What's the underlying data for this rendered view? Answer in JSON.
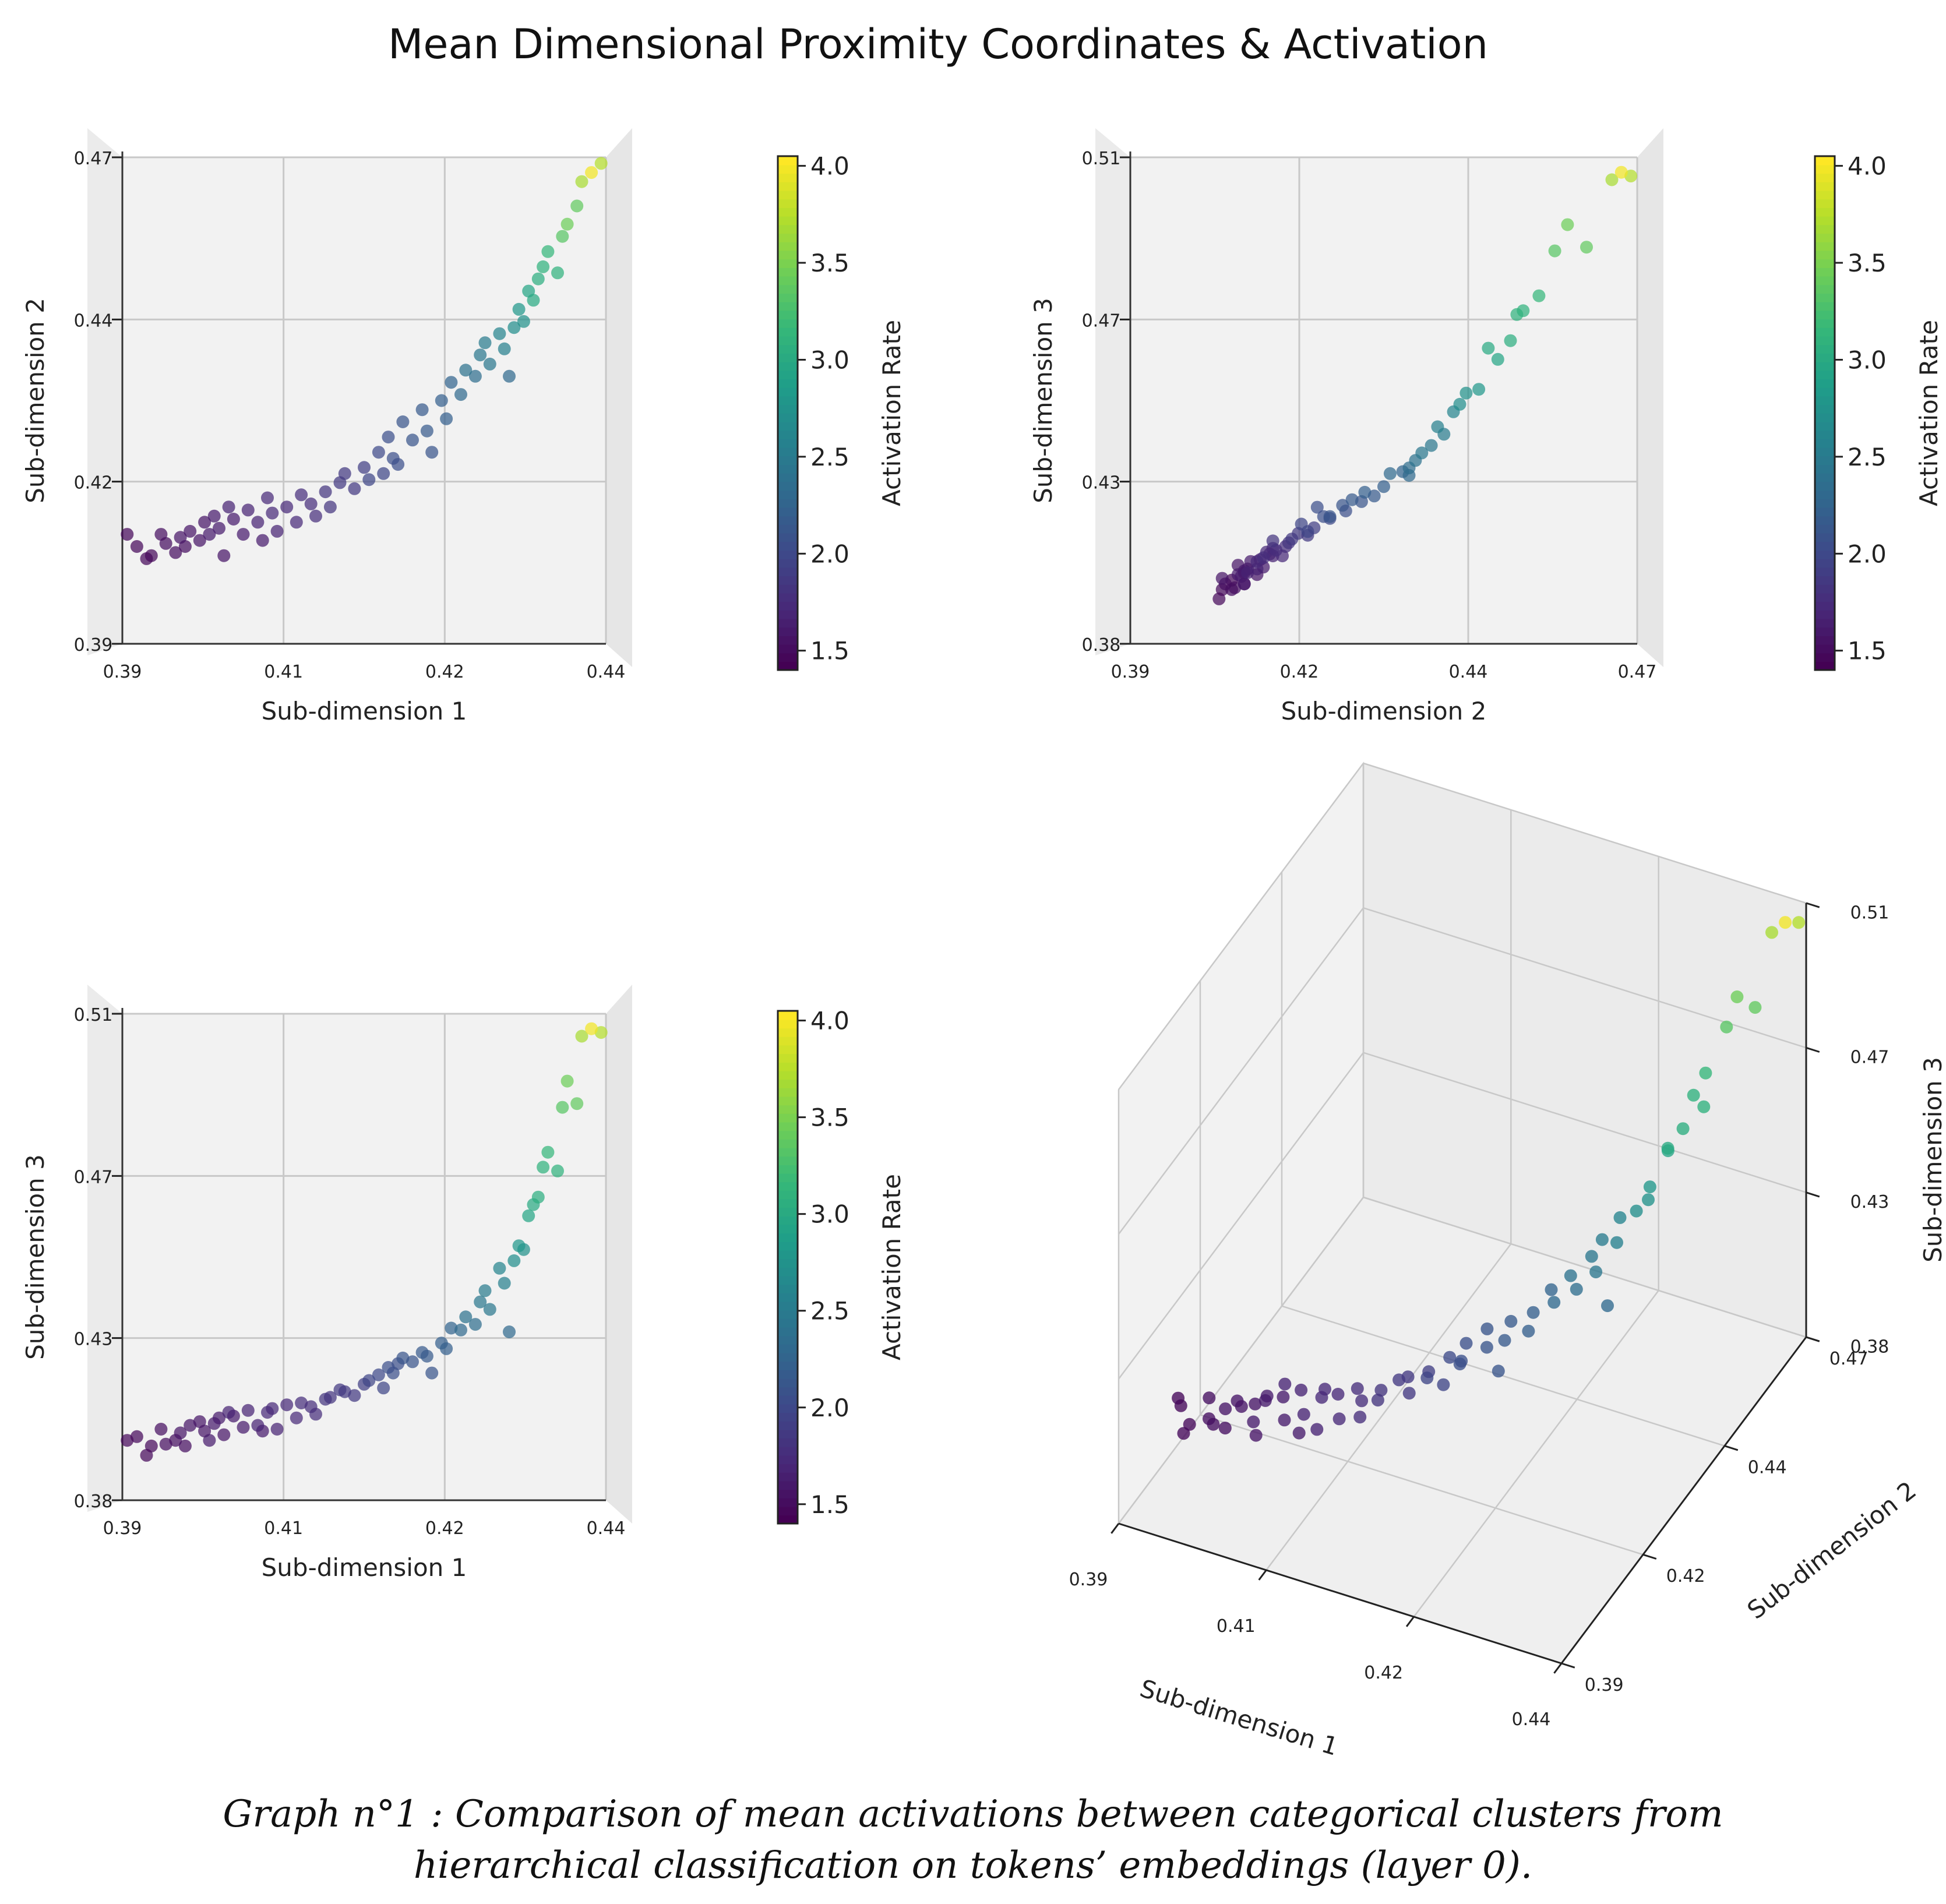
{
  "figure": {
    "title": "Mean Dimensional Proximity Coordinates & Activation",
    "caption_line1": "Graph n°1 : Comparison of mean activations between categorical clusters from",
    "caption_line2": "hierarchical classification on tokens’ embeddings (layer 0).",
    "colormap": "viridis",
    "colors": {
      "low": "#440154",
      "mid": "#21918c",
      "high": "#fde725",
      "pane": "#f2f2f2",
      "grid": "#c8c8c8"
    }
  },
  "chart_data": [
    {
      "type": "scatter",
      "panel": "top-left",
      "view": "3d projected: Sub-dimension 1 vs Sub-dimension 2",
      "xlabel": "Sub-dimension 1",
      "ylabel": "Sub-dimension 2",
      "xticks": [
        "0.39",
        "0.41",
        "0.42",
        "0.44"
      ],
      "yticks": [
        "0.39",
        "0.42",
        "0.44",
        "0.47"
      ],
      "xlim": [
        0.39,
        0.44
      ],
      "ylim": [
        0.39,
        0.47
      ],
      "grid": true,
      "colorbar": {
        "label": "Activation Rate",
        "ticks": [
          "1.5",
          "2.0",
          "2.5",
          "3.0",
          "3.5",
          "4.0"
        ],
        "range": [
          1.4,
          4.05
        ]
      }
    },
    {
      "type": "scatter",
      "panel": "top-right",
      "view": "3d projected: Sub-dimension 2 vs Sub-dimension 3",
      "xlabel": "Sub-dimension 2",
      "ylabel": "Sub-dimension 3",
      "xticks": [
        "0.39",
        "0.42",
        "0.44",
        "0.47"
      ],
      "yticks": [
        "0.38",
        "0.43",
        "0.47",
        "0.51"
      ],
      "xlim": [
        0.39,
        0.47
      ],
      "ylim": [
        0.38,
        0.51
      ],
      "grid": true,
      "colorbar": {
        "label": "Activation Rate",
        "ticks": [
          "1.5",
          "2.0",
          "2.5",
          "3.0",
          "3.5",
          "4.0"
        ],
        "range": [
          1.4,
          4.05
        ]
      }
    },
    {
      "type": "scatter",
      "panel": "bottom-left",
      "view": "3d projected: Sub-dimension 1 vs Sub-dimension 3",
      "xlabel": "Sub-dimension 1",
      "ylabel": "Sub-dimension 3",
      "xticks": [
        "0.39",
        "0.41",
        "0.42",
        "0.44"
      ],
      "yticks": [
        "0.38",
        "0.43",
        "0.47",
        "0.51"
      ],
      "xlim": [
        0.39,
        0.44
      ],
      "ylim": [
        0.38,
        0.51
      ],
      "grid": true,
      "colorbar": {
        "label": "Activation Rate",
        "ticks": [
          "1.5",
          "2.0",
          "2.5",
          "3.0",
          "3.5",
          "4.0"
        ],
        "range": [
          1.4,
          4.05
        ]
      }
    },
    {
      "type": "scatter",
      "panel": "bottom-right",
      "view": "3d perspective",
      "xlabel": "Sub-dimension 1",
      "ylabel": "Sub-dimension 2",
      "zlabel": "Sub-dimension 3",
      "xticks": [
        "0.39",
        "0.41",
        "0.42",
        "0.44"
      ],
      "yticks": [
        "0.39",
        "0.42",
        "0.44",
        "0.47"
      ],
      "zticks": [
        "0.38",
        "0.43",
        "0.47",
        "0.51"
      ],
      "xlim": [
        0.39,
        0.44
      ],
      "ylim": [
        0.39,
        0.47
      ],
      "zlim": [
        0.38,
        0.51
      ],
      "grid": true
    }
  ],
  "points": [
    {
      "x": 0.3905,
      "y": 0.408,
      "z": 0.396,
      "c": 1.45
    },
    {
      "x": 0.3915,
      "y": 0.406,
      "z": 0.397,
      "c": 1.45
    },
    {
      "x": 0.3925,
      "y": 0.404,
      "z": 0.392,
      "c": 1.45
    },
    {
      "x": 0.393,
      "y": 0.4045,
      "z": 0.3945,
      "c": 1.45
    },
    {
      "x": 0.394,
      "y": 0.408,
      "z": 0.399,
      "c": 1.5
    },
    {
      "x": 0.3945,
      "y": 0.4065,
      "z": 0.395,
      "c": 1.5
    },
    {
      "x": 0.3955,
      "y": 0.405,
      "z": 0.396,
      "c": 1.5
    },
    {
      "x": 0.396,
      "y": 0.4075,
      "z": 0.398,
      "c": 1.55
    },
    {
      "x": 0.3965,
      "y": 0.406,
      "z": 0.3945,
      "c": 1.5
    },
    {
      "x": 0.397,
      "y": 0.4085,
      "z": 0.4,
      "c": 1.55
    },
    {
      "x": 0.398,
      "y": 0.407,
      "z": 0.401,
      "c": 1.55
    },
    {
      "x": 0.3985,
      "y": 0.41,
      "z": 0.3985,
      "c": 1.55
    },
    {
      "x": 0.399,
      "y": 0.408,
      "z": 0.396,
      "c": 1.6
    },
    {
      "x": 0.3995,
      "y": 0.411,
      "z": 0.4005,
      "c": 1.6
    },
    {
      "x": 0.4,
      "y": 0.409,
      "z": 0.402,
      "c": 1.6
    },
    {
      "x": 0.4005,
      "y": 0.4045,
      "z": 0.3975,
      "c": 1.55
    },
    {
      "x": 0.401,
      "y": 0.4125,
      "z": 0.4035,
      "c": 1.65
    },
    {
      "x": 0.4015,
      "y": 0.4105,
      "z": 0.4025,
      "c": 1.6
    },
    {
      "x": 0.4025,
      "y": 0.408,
      "z": 0.3995,
      "c": 1.6
    },
    {
      "x": 0.403,
      "y": 0.412,
      "z": 0.404,
      "c": 1.65
    },
    {
      "x": 0.404,
      "y": 0.41,
      "z": 0.4,
      "c": 1.65
    },
    {
      "x": 0.4045,
      "y": 0.407,
      "z": 0.3985,
      "c": 1.6
    },
    {
      "x": 0.405,
      "y": 0.414,
      "z": 0.4035,
      "c": 1.7
    },
    {
      "x": 0.4055,
      "y": 0.4115,
      "z": 0.4045,
      "c": 1.7
    },
    {
      "x": 0.406,
      "y": 0.4085,
      "z": 0.399,
      "c": 1.65
    },
    {
      "x": 0.407,
      "y": 0.4125,
      "z": 0.4055,
      "c": 1.7
    },
    {
      "x": 0.408,
      "y": 0.41,
      "z": 0.402,
      "c": 1.7
    },
    {
      "x": 0.4085,
      "y": 0.4145,
      "z": 0.406,
      "c": 1.75
    },
    {
      "x": 0.4095,
      "y": 0.413,
      "z": 0.405,
      "c": 1.75
    },
    {
      "x": 0.41,
      "y": 0.411,
      "z": 0.403,
      "c": 1.75
    },
    {
      "x": 0.411,
      "y": 0.415,
      "z": 0.407,
      "c": 1.8
    },
    {
      "x": 0.4115,
      "y": 0.4125,
      "z": 0.4075,
      "c": 1.8
    },
    {
      "x": 0.4125,
      "y": 0.4165,
      "z": 0.4095,
      "c": 1.85
    },
    {
      "x": 0.413,
      "y": 0.418,
      "z": 0.409,
      "c": 1.85
    },
    {
      "x": 0.414,
      "y": 0.4155,
      "z": 0.408,
      "c": 1.85
    },
    {
      "x": 0.415,
      "y": 0.419,
      "z": 0.411,
      "c": 1.9
    },
    {
      "x": 0.4155,
      "y": 0.417,
      "z": 0.412,
      "c": 1.95
    },
    {
      "x": 0.4165,
      "y": 0.4215,
      "z": 0.4135,
      "c": 2.0
    },
    {
      "x": 0.417,
      "y": 0.418,
      "z": 0.41,
      "c": 1.95
    },
    {
      "x": 0.4175,
      "y": 0.424,
      "z": 0.4155,
      "c": 2.05
    },
    {
      "x": 0.418,
      "y": 0.4205,
      "z": 0.414,
      "c": 2.05
    },
    {
      "x": 0.4185,
      "y": 0.4195,
      "z": 0.4165,
      "c": 2.05
    },
    {
      "x": 0.419,
      "y": 0.4265,
      "z": 0.418,
      "c": 2.1
    },
    {
      "x": 0.42,
      "y": 0.4235,
      "z": 0.417,
      "c": 2.1
    },
    {
      "x": 0.421,
      "y": 0.4285,
      "z": 0.4195,
      "c": 2.15
    },
    {
      "x": 0.4215,
      "y": 0.425,
      "z": 0.4185,
      "c": 2.15
    },
    {
      "x": 0.422,
      "y": 0.4215,
      "z": 0.414,
      "c": 2.1
    },
    {
      "x": 0.423,
      "y": 0.43,
      "z": 0.422,
      "c": 2.2
    },
    {
      "x": 0.4235,
      "y": 0.427,
      "z": 0.4205,
      "c": 2.2
    },
    {
      "x": 0.424,
      "y": 0.433,
      "z": 0.426,
      "c": 2.25
    },
    {
      "x": 0.425,
      "y": 0.431,
      "z": 0.4255,
      "c": 2.3
    },
    {
      "x": 0.4255,
      "y": 0.435,
      "z": 0.429,
      "c": 2.4
    },
    {
      "x": 0.4265,
      "y": 0.434,
      "z": 0.427,
      "c": 2.35
    },
    {
      "x": 0.427,
      "y": 0.4375,
      "z": 0.433,
      "c": 2.45
    },
    {
      "x": 0.4275,
      "y": 0.4395,
      "z": 0.436,
      "c": 2.5
    },
    {
      "x": 0.428,
      "y": 0.436,
      "z": 0.431,
      "c": 2.45
    },
    {
      "x": 0.429,
      "y": 0.441,
      "z": 0.442,
      "c": 2.6
    },
    {
      "x": 0.4295,
      "y": 0.4385,
      "z": 0.438,
      "c": 2.55
    },
    {
      "x": 0.43,
      "y": 0.434,
      "z": 0.425,
      "c": 2.3
    },
    {
      "x": 0.4305,
      "y": 0.442,
      "z": 0.444,
      "c": 2.7
    },
    {
      "x": 0.431,
      "y": 0.445,
      "z": 0.448,
      "c": 2.8
    },
    {
      "x": 0.4315,
      "y": 0.443,
      "z": 0.447,
      "c": 2.75
    },
    {
      "x": 0.432,
      "y": 0.448,
      "z": 0.456,
      "c": 2.95
    },
    {
      "x": 0.4325,
      "y": 0.4465,
      "z": 0.459,
      "c": 3.0
    },
    {
      "x": 0.433,
      "y": 0.45,
      "z": 0.461,
      "c": 3.05
    },
    {
      "x": 0.4335,
      "y": 0.452,
      "z": 0.469,
      "c": 3.1
    },
    {
      "x": 0.434,
      "y": 0.4545,
      "z": 0.473,
      "c": 3.15
    },
    {
      "x": 0.435,
      "y": 0.451,
      "z": 0.468,
      "c": 3.1
    },
    {
      "x": 0.4355,
      "y": 0.457,
      "z": 0.485,
      "c": 3.35
    },
    {
      "x": 0.436,
      "y": 0.459,
      "z": 0.492,
      "c": 3.45
    },
    {
      "x": 0.437,
      "y": 0.462,
      "z": 0.486,
      "c": 3.4
    },
    {
      "x": 0.4375,
      "y": 0.466,
      "z": 0.504,
      "c": 3.7
    },
    {
      "x": 0.4385,
      "y": 0.4675,
      "z": 0.506,
      "c": 4.0
    },
    {
      "x": 0.4395,
      "y": 0.469,
      "z": 0.505,
      "c": 3.75
    }
  ]
}
